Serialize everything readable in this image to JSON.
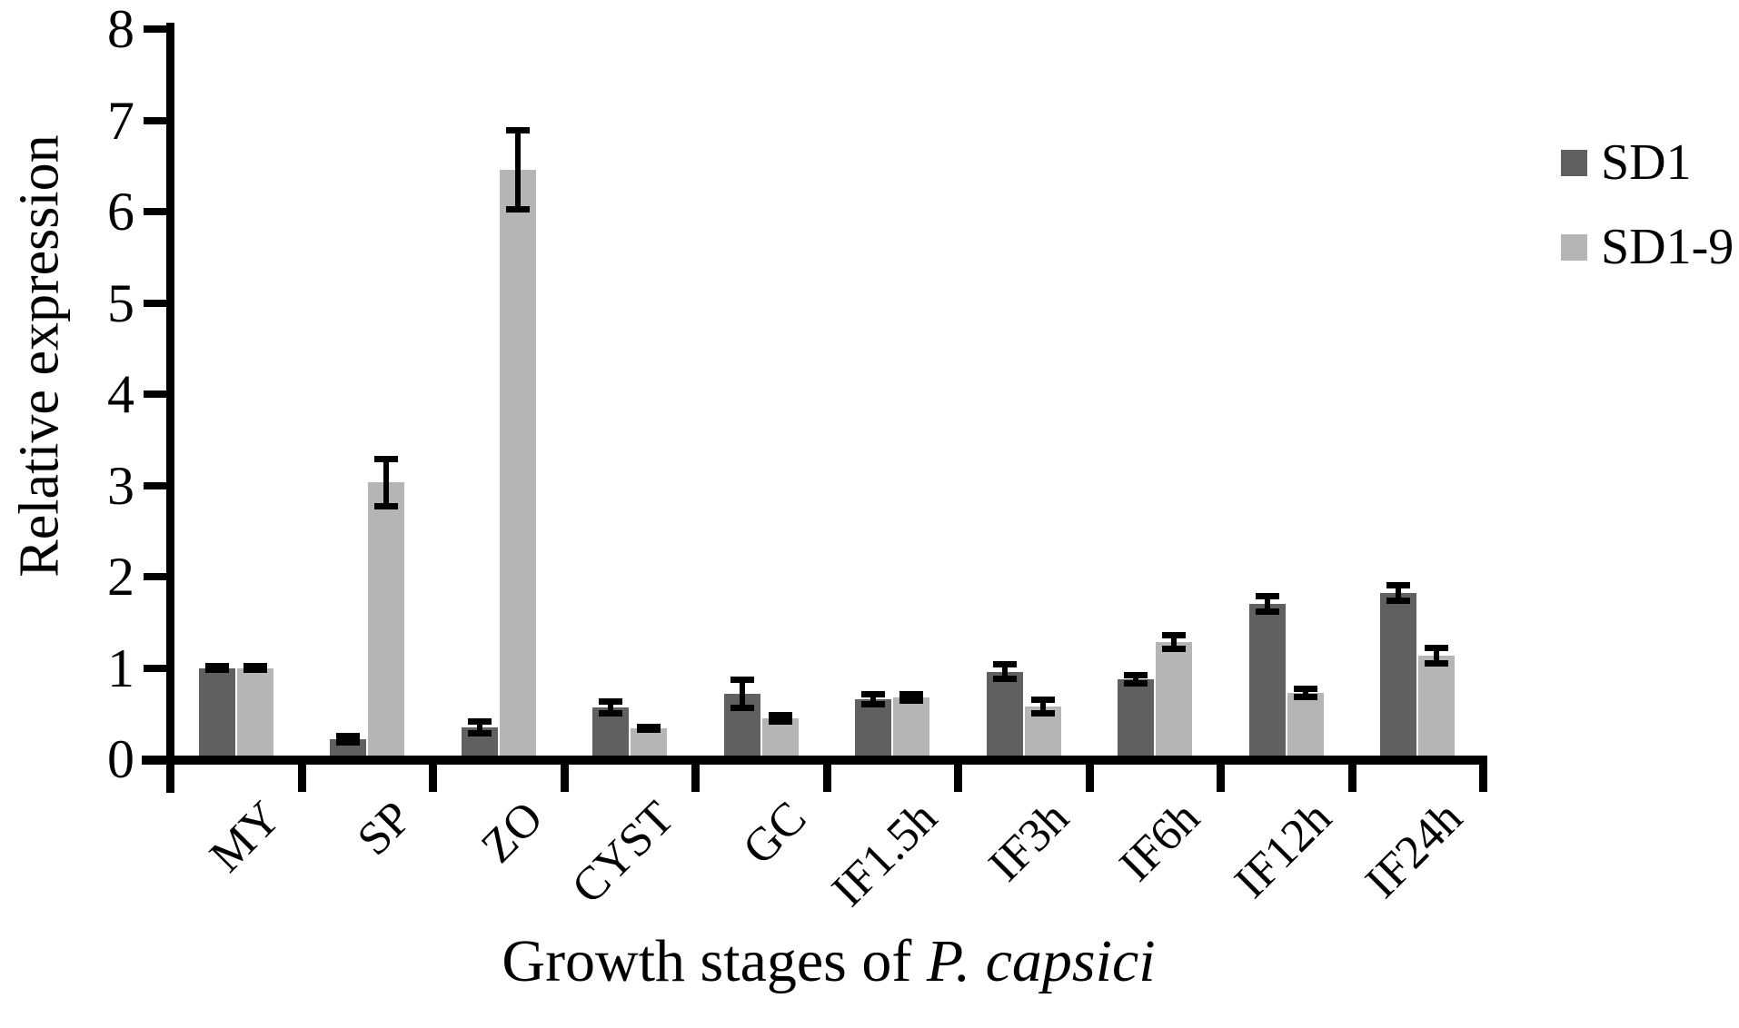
{
  "chart_data": {
    "type": "bar",
    "title": "",
    "ylabel": "Relative expression",
    "xlabel": "Growth stages of P. capsici",
    "xlabel_prefix": "Growth stages of ",
    "xlabel_species": "P. capsici",
    "categories": [
      "MY",
      "SP",
      "ZO",
      "CYST",
      "GC",
      "IF1.5h",
      "IF3h",
      "IF6h",
      "IF12h",
      "IF24h"
    ],
    "series": [
      {
        "name": "SD1",
        "color": "#606060",
        "values": [
          1.0,
          0.22,
          0.35,
          0.57,
          0.72,
          0.66,
          0.96,
          0.88,
          1.7,
          1.82
        ],
        "errors": [
          0.02,
          0.04,
          0.07,
          0.07,
          0.16,
          0.06,
          0.08,
          0.05,
          0.09,
          0.09
        ]
      },
      {
        "name": "SD1-9",
        "color": "#b5b5b5",
        "values": [
          1.0,
          3.03,
          6.46,
          0.34,
          0.45,
          0.68,
          0.58,
          1.28,
          0.73,
          1.13
        ],
        "errors": [
          0.02,
          0.26,
          0.44,
          0.02,
          0.04,
          0.04,
          0.08,
          0.08,
          0.05,
          0.09
        ]
      }
    ],
    "ylim": [
      0,
      8
    ],
    "yticks": [
      0,
      1,
      2,
      3,
      4,
      5,
      6,
      7,
      8
    ],
    "grid": false,
    "legend_position": "upper-right",
    "error_bars": true,
    "axis_color": "#000000",
    "error_bar_color": "#000000"
  }
}
